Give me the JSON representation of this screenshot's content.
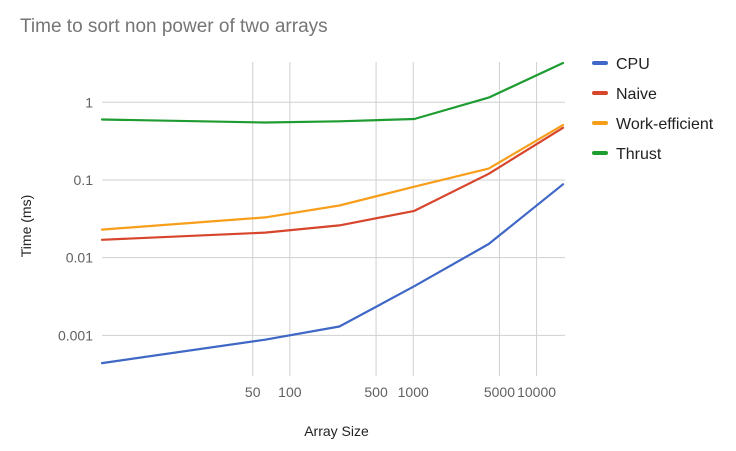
{
  "chart_data": {
    "type": "line",
    "title": "Time to sort non power of two arrays",
    "xlabel": "Array Size",
    "ylabel": "Time (ms)",
    "x_scale": "log",
    "y_scale": "log",
    "xlim": [
      3,
      17000
    ],
    "ylim": [
      0.0003,
      3.3
    ],
    "x_tick_labels": [
      {
        "value": 50,
        "label": "50"
      },
      {
        "value": 100,
        "label": "100"
      },
      {
        "value": 500,
        "label": "500"
      },
      {
        "value": 1000,
        "label": "1000"
      },
      {
        "value": 5000,
        "label": "5000"
      },
      {
        "value": 10000,
        "label": "10000"
      }
    ],
    "y_tick_labels": [
      {
        "value": 0.001,
        "label": "0.001"
      },
      {
        "value": 0.01,
        "label": "0.01"
      },
      {
        "value": 0.1,
        "label": "0.1"
      },
      {
        "value": 1,
        "label": "1"
      }
    ],
    "grid": true,
    "legend_position": "right",
    "series": [
      {
        "name": "CPU",
        "color": "#3f67c5",
        "points": [
          [
            3,
            0.00044
          ],
          [
            63,
            0.00088
          ],
          [
            252,
            0.0013
          ],
          [
            1021,
            0.0043
          ],
          [
            4093,
            0.015
          ],
          [
            16381,
            0.088
          ]
        ]
      },
      {
        "name": "Naive",
        "color": "#d6452c",
        "points": [
          [
            3,
            0.017
          ],
          [
            63,
            0.021
          ],
          [
            252,
            0.026
          ],
          [
            1021,
            0.04
          ],
          [
            4093,
            0.12
          ],
          [
            16381,
            0.47
          ]
        ]
      },
      {
        "name": "Work-efficient",
        "color": "#f79e1b",
        "points": [
          [
            3,
            0.023
          ],
          [
            63,
            0.033
          ],
          [
            252,
            0.047
          ],
          [
            1021,
            0.082
          ],
          [
            4093,
            0.14
          ],
          [
            16381,
            0.51
          ]
        ]
      },
      {
        "name": "Thrust",
        "color": "#1e9c31",
        "points": [
          [
            3,
            0.6
          ],
          [
            63,
            0.55
          ],
          [
            252,
            0.57
          ],
          [
            1021,
            0.61
          ],
          [
            4093,
            1.15
          ],
          [
            16381,
            3.2
          ]
        ]
      }
    ]
  }
}
